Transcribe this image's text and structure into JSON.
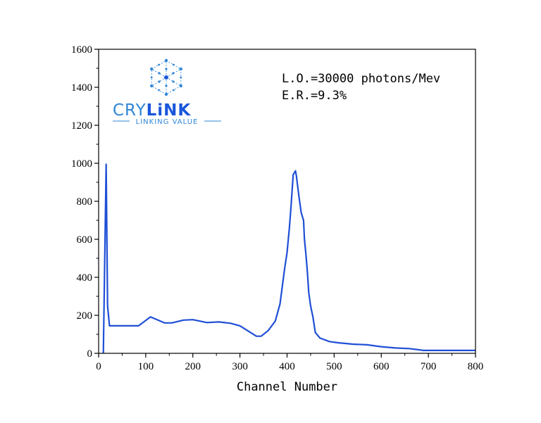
{
  "chart_data": {
    "type": "line",
    "title": "",
    "xlabel": "Channel Number",
    "ylabel": "",
    "xlim": [
      0,
      800
    ],
    "ylim": [
      0,
      1600
    ],
    "xticks": [
      0,
      100,
      200,
      300,
      400,
      500,
      600,
      700,
      800
    ],
    "yticks": [
      0,
      200,
      400,
      600,
      800,
      1000,
      1200,
      1400,
      1600
    ],
    "grid": false,
    "series": [
      {
        "color": "#1f4fd6",
        "x": [
          10,
          16,
          19,
          23,
          40,
          60,
          85,
          110,
          140,
          155,
          180,
          200,
          230,
          255,
          280,
          300,
          335,
          345,
          360,
          375,
          385,
          395,
          400,
          405,
          408,
          413,
          418,
          420,
          425,
          430,
          435,
          437,
          440,
          443,
          446,
          450,
          455,
          460,
          470,
          490,
          510,
          540,
          570,
          600,
          630,
          660,
          690,
          720,
          760,
          800
        ],
        "y": [
          0,
          995,
          250,
          145,
          145,
          145,
          145,
          192,
          160,
          160,
          175,
          177,
          162,
          165,
          158,
          145,
          90,
          90,
          120,
          170,
          260,
          450,
          530,
          660,
          760,
          940,
          960,
          930,
          830,
          740,
          700,
          600,
          520,
          430,
          320,
          250,
          190,
          110,
          80,
          62,
          55,
          48,
          45,
          35,
          28,
          25,
          15,
          15,
          15,
          15
        ]
      }
    ],
    "annotations": [
      "L.O.=30000 photons/Mev",
      "E.R.=9.3%"
    ]
  },
  "logo": {
    "name": "CRYLINK",
    "tagline": "LINKING VALUE",
    "primary_color": "#1a56db",
    "secondary_color": "#2f86d6"
  }
}
